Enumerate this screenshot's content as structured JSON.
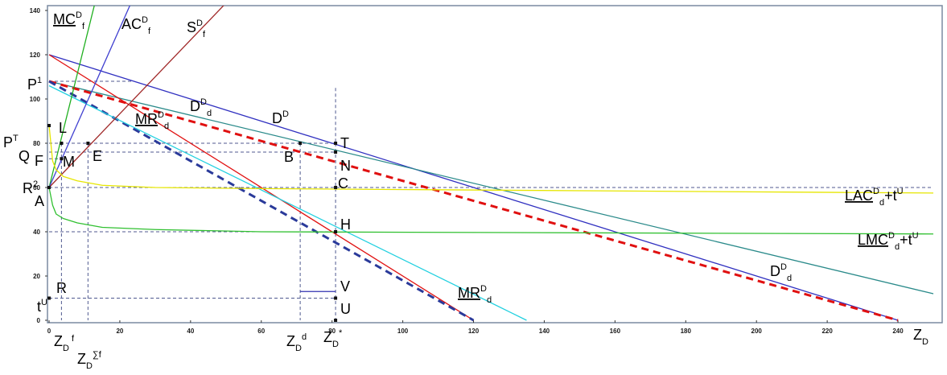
{
  "chart_data": {
    "type": "line",
    "xlim": [
      0,
      250
    ],
    "ylim": [
      0,
      140
    ],
    "x_ticks": [
      "0",
      "20",
      "40",
      "60",
      "80",
      "100",
      "120",
      "140",
      "160",
      "180",
      "200",
      "220",
      "240"
    ],
    "y_ticks": [
      "0",
      "20",
      "40",
      "60",
      "80",
      "100",
      "120",
      "140"
    ],
    "grid": false,
    "series": [
      {
        "name": "D",
        "color": "#3030c0",
        "x": [
          0,
          240
        ],
        "y": [
          120,
          0
        ]
      },
      {
        "name": "D",
        "color": "#2a8a8a",
        "x": [
          0,
          250
        ],
        "y": [
          108,
          12
        ]
      },
      {
        "name": "D",
        "color": "#e01010",
        "dashed": true,
        "x": [
          0,
          240
        ],
        "y": [
          108,
          0
        ]
      },
      {
        "name": "MR",
        "color": "#e01010",
        "x": [
          0,
          120
        ],
        "y": [
          120,
          0
        ]
      },
      {
        "name": "MR",
        "color": "#2a3a9a",
        "dashed": true,
        "x": [
          0,
          120
        ],
        "y": [
          108,
          0
        ]
      },
      {
        "name": "",
        "color": "#20d0e0",
        "x": [
          0,
          135
        ],
        "y": [
          106,
          0
        ]
      },
      {
        "name": "MC",
        "color": "#20b020",
        "x": [
          0,
          14
        ],
        "y": [
          60,
          150
        ]
      },
      {
        "name": "AC",
        "color": "#4040d0",
        "x": [
          0,
          25
        ],
        "y": [
          60,
          150
        ]
      },
      {
        "name": "S",
        "color": "#a02828",
        "x": [
          0,
          54
        ],
        "y": [
          60,
          150
        ]
      },
      {
        "name": "LAC",
        "color": "#e6e600",
        "x": [
          0,
          1,
          2,
          4,
          8,
          15,
          30,
          60,
          250
        ],
        "y": [
          88,
          72,
          68,
          65,
          63,
          61,
          60,
          59.5,
          57.5
        ]
      },
      {
        "name": "LMC",
        "color": "#30c030",
        "x": [
          0,
          1,
          2,
          4,
          8,
          15,
          30,
          60,
          250
        ],
        "y": [
          60,
          52,
          48,
          46,
          44,
          42,
          41,
          40,
          39
        ]
      }
    ]
  },
  "labels": {
    "mc_f": {
      "main": "MC",
      "sup": "D",
      "sub": "f"
    },
    "ac_f": {
      "main": "AC",
      "sup": "D",
      "sub": "f"
    },
    "s_f": {
      "main": "S",
      "sup": "D",
      "sub": "f"
    },
    "p1": {
      "main": "P",
      "sup": "1"
    },
    "pt": {
      "main": "P",
      "sup": "T"
    },
    "q": "Q",
    "f": "F",
    "r2": {
      "main": "R",
      "sup": "2"
    },
    "a": "A",
    "tu": {
      "main": "t",
      "sup": "U"
    },
    "l": "L",
    "m": "M",
    "e": "E",
    "b": "B",
    "t": "T",
    "n": "N",
    "c": "C",
    "h": "H",
    "v": "V",
    "u": "U",
    "r": "R",
    "mr_dd_top": {
      "main": "MR",
      "sup": "D",
      "sub": "d"
    },
    "d_dd_top": {
      "main": "D",
      "sup": "D",
      "sub": "d"
    },
    "d_d": {
      "main": "D",
      "sup": "D"
    },
    "lac": {
      "main": "LAC",
      "sup": "D",
      "sub": "d",
      "tail": "+t",
      "tail_sup": "U"
    },
    "lmc": {
      "main": "LMC",
      "sup": "D",
      "sub": "d",
      "tail": "+t",
      "tail_sup": "U"
    },
    "d_dd_bot": {
      "main": "D",
      "sup": "D",
      "sub": "d"
    },
    "mr_dd_bot": {
      "main": "MR",
      "sup": "D",
      "sub": "d"
    },
    "zd_f": {
      "main": "Z",
      "sub": "D",
      "sub2": "f"
    },
    "zd_sigma": {
      "main": "Z",
      "sub": "D",
      "sup2": "∑f"
    },
    "zd_d": {
      "main": "Z",
      "sub": "D",
      "sup2": "d"
    },
    "zd_star": {
      "main": "Z",
      "sub": "D",
      "sup2": "*"
    },
    "zd_end": {
      "main": "Z",
      "sub": "D"
    }
  }
}
